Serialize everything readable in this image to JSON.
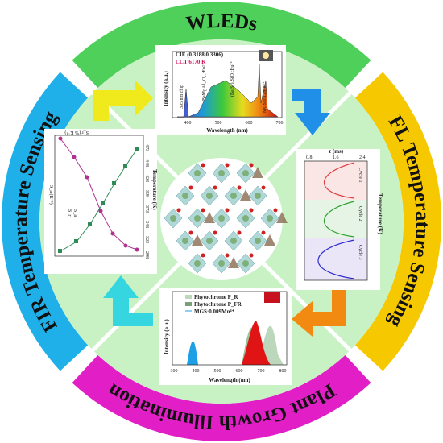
{
  "ring": {
    "top": "WLEDs",
    "right": "FL Temperature Sensing",
    "bottom": "Plant Growth Illumination",
    "left": "FIR Temperature Sensing"
  },
  "panels": {
    "wleds": {
      "cie": "CIE (0.3188,0.3306)",
      "cct": "CCT 6170 K",
      "ylabel": "Intensity (a.u.)",
      "xlabel": "Wavelength (nm)",
      "xticks": [
        "400",
        "500",
        "600",
        "700"
      ],
      "labels": [
        "395 nm chip",
        "BaMgAl₁₀O₁₇:Eu²⁺",
        "(Ba,Sr)₂SiO₄:Eu²⁺",
        "MGS:0.12Mn⁴⁺"
      ]
    },
    "fl": {
      "xlabel": "τ (ms)",
      "ylabel": "Temperature (K)",
      "xticks": [
        "0.8",
        "1.6",
        "2.4"
      ],
      "cycles": [
        "Cycle 1",
        "Cycle 2",
        "Cycle 3"
      ]
    },
    "plant": {
      "legend": [
        "Phytochrome P_R",
        "Phytochrome P_FR",
        "MGS:0.009Mn⁴⁺"
      ],
      "ylabel": "Intensity (a.u.)",
      "xlabel": "Wavelength (nm)",
      "xticks": [
        "300",
        "400",
        "500",
        "600",
        "700",
        "800"
      ]
    },
    "fir": {
      "xlabel": "Temperature (K)",
      "left_axis": "S_a (K⁻¹)",
      "right_axis": "S_r (% K⁻¹)",
      "legend": [
        "S_a",
        "S_r"
      ],
      "xticks": [
        "298",
        "323",
        "348",
        "373",
        "398",
        "423",
        "448",
        "473"
      ]
    }
  }
}
